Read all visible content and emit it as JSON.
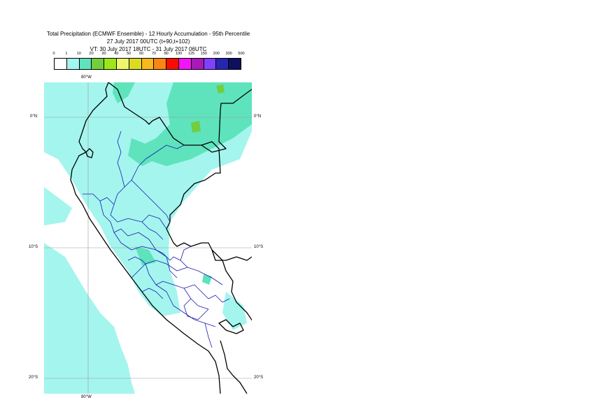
{
  "title": {
    "line1": "Total Precipitation (ECMWF Ensemble) - 12 Hourly Accumulation - 95th Percentile",
    "line2": "27 July 2017 00UTC (t+90,t+102)",
    "line3": "VT: 30 July 2017 18UTC - 31 July 2017 06UTC"
  },
  "legend": {
    "labels": [
      "0",
      "1",
      "10",
      "20",
      "30",
      "40",
      "50",
      "60",
      "70",
      "80",
      "100",
      "125",
      "150",
      "200",
      "300",
      "500"
    ],
    "colors": [
      "#ffffff",
      "#a4f5ee",
      "#5ee3bd",
      "#73cd3f",
      "#9be71a",
      "#ecf76b",
      "#dbdb22",
      "#f7b91c",
      "#f98612",
      "#fa0d00",
      "#f513f7",
      "#a71ab7",
      "#7e42ff",
      "#2626b3",
      "#0f0f5d"
    ]
  },
  "map": {
    "longitude_labels": {
      "top": "80°W",
      "bottom": "80°W"
    },
    "latitude_labels": [
      {
        "text": "0°N",
        "lat": 0
      },
      {
        "text": "10°S",
        "lat": -10
      },
      {
        "text": "20°S",
        "lat": -20
      }
    ],
    "colors": {
      "precip_1_10": "#a4f5ee",
      "precip_10_20": "#5ee3bd",
      "precip_20_30": "#73cd3f",
      "precip_30_40": "#9be71a",
      "coastline": "#000000",
      "region_borders": "#1a1ab0",
      "gridlines": "#9a9a9a"
    }
  }
}
